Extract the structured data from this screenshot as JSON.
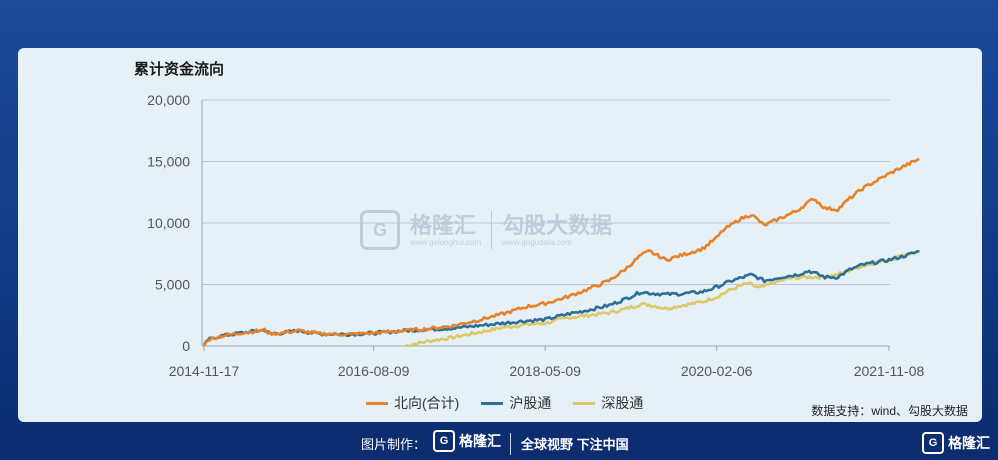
{
  "chart_data": {
    "type": "line",
    "title": "累计资金流向",
    "xlabel": "",
    "ylabel": "",
    "x_ticks": [
      "2014-11-17",
      "2016-08-09",
      "2018-05-09",
      "2020-02-06",
      "2021-11-08"
    ],
    "y_ticks": [
      "0",
      "5,000",
      "10,000",
      "15,000",
      "20,000"
    ],
    "ylim": [
      0,
      20000
    ],
    "x_range": [
      "2014-11-17",
      "2021-11-08"
    ],
    "grid": "horizontal",
    "legend_position": "bottom",
    "series": [
      {
        "name": "北向(合计)",
        "color": "#e8822a",
        "points": [
          [
            "2014-11-17",
            0
          ],
          [
            "2014-12-01",
            500
          ],
          [
            "2015-01-15",
            800
          ],
          [
            "2015-04-15",
            1100
          ],
          [
            "2015-07-01",
            1300
          ],
          [
            "2015-07-20",
            1000
          ],
          [
            "2015-09-01",
            1050
          ],
          [
            "2015-11-01",
            1250
          ],
          [
            "2016-01-15",
            1000
          ],
          [
            "2016-05-01",
            950
          ],
          [
            "2016-08-09",
            1050
          ],
          [
            "2016-12-01",
            1250
          ],
          [
            "2017-03-01",
            1400
          ],
          [
            "2017-06-01",
            1650
          ],
          [
            "2017-09-01",
            2100
          ],
          [
            "2017-12-01",
            2600
          ],
          [
            "2018-03-01",
            3200
          ],
          [
            "2018-05-09",
            3450
          ],
          [
            "2018-08-01",
            4000
          ],
          [
            "2018-10-01",
            4500
          ],
          [
            "2019-01-01",
            5300
          ],
          [
            "2019-03-01",
            6200
          ],
          [
            "2019-05-01",
            7400
          ],
          [
            "2019-06-01",
            7700
          ],
          [
            "2019-08-01",
            7000
          ],
          [
            "2019-10-01",
            7400
          ],
          [
            "2019-12-15",
            7900
          ],
          [
            "2020-02-06",
            8800
          ],
          [
            "2020-03-01",
            9400
          ],
          [
            "2020-05-01",
            10300
          ],
          [
            "2020-06-15",
            10700
          ],
          [
            "2020-08-01",
            9800
          ],
          [
            "2020-10-01",
            10400
          ],
          [
            "2020-12-01",
            11000
          ],
          [
            "2021-01-01",
            11500
          ],
          [
            "2021-02-01",
            12000
          ],
          [
            "2021-03-15",
            11200
          ],
          [
            "2021-05-01",
            11100
          ],
          [
            "2021-06-15",
            12000
          ],
          [
            "2021-08-01",
            12800
          ],
          [
            "2021-11-08",
            14000
          ],
          [
            "2022-01-01",
            14600
          ],
          [
            "2022-03-01",
            15200
          ]
        ]
      },
      {
        "name": "沪股通",
        "color": "#2b6f96",
        "points": [
          [
            "2014-11-17",
            0
          ],
          [
            "2014-12-01",
            500
          ],
          [
            "2015-01-15",
            800
          ],
          [
            "2015-04-15",
            1100
          ],
          [
            "2015-07-01",
            1300
          ],
          [
            "2015-07-20",
            1000
          ],
          [
            "2015-09-01",
            1050
          ],
          [
            "2015-11-01",
            1250
          ],
          [
            "2016-01-15",
            1000
          ],
          [
            "2016-05-01",
            950
          ],
          [
            "2016-08-09",
            1050
          ],
          [
            "2016-12-01",
            1250
          ],
          [
            "2017-03-01",
            1350
          ],
          [
            "2017-06-01",
            1450
          ],
          [
            "2017-09-01",
            1650
          ],
          [
            "2017-12-01",
            1850
          ],
          [
            "2018-03-01",
            2050
          ],
          [
            "2018-05-09",
            2150
          ],
          [
            "2018-08-01",
            2600
          ],
          [
            "2018-10-01",
            2850
          ],
          [
            "2019-01-01",
            3300
          ],
          [
            "2019-03-01",
            3800
          ],
          [
            "2019-05-01",
            4400
          ],
          [
            "2019-06-01",
            4300
          ],
          [
            "2019-08-01",
            4200
          ],
          [
            "2019-10-01",
            4250
          ],
          [
            "2019-12-15",
            4400
          ],
          [
            "2020-02-06",
            4800
          ],
          [
            "2020-04-01",
            5300
          ],
          [
            "2020-06-15",
            5800
          ],
          [
            "2020-08-01",
            5300
          ],
          [
            "2020-10-01",
            5600
          ],
          [
            "2020-12-01",
            5800
          ],
          [
            "2021-01-15",
            6100
          ],
          [
            "2021-03-15",
            5600
          ],
          [
            "2021-05-01",
            5600
          ],
          [
            "2021-06-15",
            6200
          ],
          [
            "2021-08-01",
            6600
          ],
          [
            "2021-11-08",
            7000
          ],
          [
            "2022-01-01",
            7300
          ],
          [
            "2022-03-01",
            7700
          ]
        ]
      },
      {
        "name": "深股通",
        "color": "#dcc867",
        "points": [
          [
            "2016-12-05",
            0
          ],
          [
            "2017-03-01",
            400
          ],
          [
            "2017-06-01",
            700
          ],
          [
            "2017-09-01",
            1100
          ],
          [
            "2017-12-01",
            1500
          ],
          [
            "2018-03-01",
            1750
          ],
          [
            "2018-05-09",
            1850
          ],
          [
            "2018-08-01",
            2300
          ],
          [
            "2018-10-01",
            2450
          ],
          [
            "2019-01-01",
            2700
          ],
          [
            "2019-03-01",
            3000
          ],
          [
            "2019-05-01",
            3400
          ],
          [
            "2019-06-01",
            3350
          ],
          [
            "2019-08-01",
            3050
          ],
          [
            "2019-10-01",
            3300
          ],
          [
            "2019-12-15",
            3600
          ],
          [
            "2020-02-06",
            4000
          ],
          [
            "2020-04-01",
            4600
          ],
          [
            "2020-06-01",
            5100
          ],
          [
            "2020-07-15",
            4700
          ],
          [
            "2020-09-01",
            5100
          ],
          [
            "2020-11-01",
            5500
          ],
          [
            "2021-01-01",
            5600
          ],
          [
            "2021-03-15",
            5600
          ],
          [
            "2021-05-01",
            5800
          ],
          [
            "2021-07-01",
            6300
          ],
          [
            "2021-09-01",
            6700
          ],
          [
            "2021-11-08",
            7000
          ],
          [
            "2022-01-01",
            7400
          ],
          [
            "2022-03-01",
            7700
          ]
        ]
      }
    ]
  },
  "source_note": "数据支持：wind、勾股大数据",
  "footer": {
    "prefix": "图片制作：",
    "brand": "格隆汇",
    "slogan": "全球视野 下注中国",
    "logo_letter": "G"
  },
  "corner_brand": "格隆汇",
  "watermark": {
    "brand1": "格隆汇",
    "brand1_url": "www.gelonghui.com",
    "brand2": "勾股大数据",
    "brand2_url": "www.gogudata.com"
  }
}
